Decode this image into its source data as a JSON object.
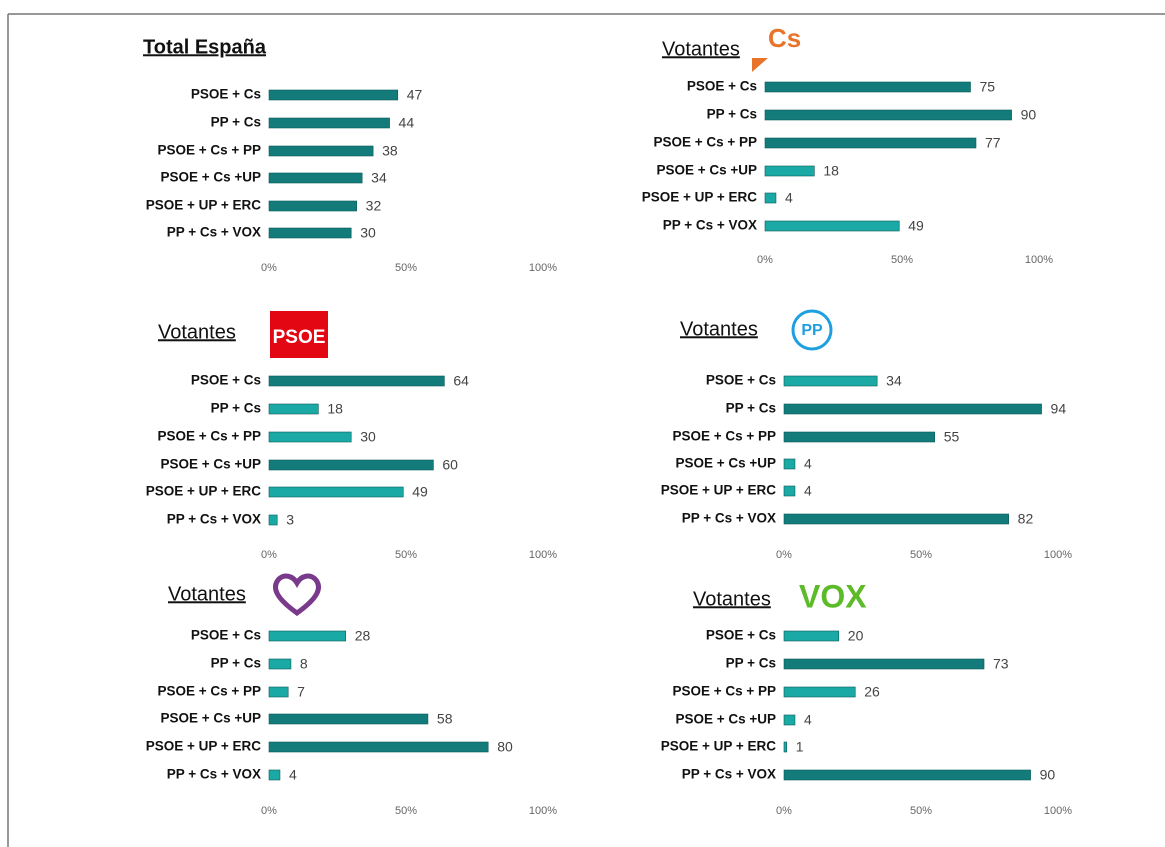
{
  "chart_data": [
    {
      "type": "bar",
      "title": "Total España",
      "categories": [
        "PSOE + Cs",
        "PP + Cs",
        "PSOE + Cs + PP",
        "PSOE + Cs +UP",
        "PSOE + UP + ERC",
        "PP + Cs + VOX"
      ],
      "values": [
        47,
        44,
        38,
        34,
        32,
        30
      ],
      "colors": [
        "#137c7a",
        "#137c7a",
        "#137c7a",
        "#137c7a",
        "#137c7a",
        "#137c7a"
      ],
      "xlim": [
        0,
        100
      ],
      "xticks": [
        {
          "value": 0,
          "label": "0%"
        },
        {
          "value": 50,
          "label": "50%"
        },
        {
          "value": 100,
          "label": "100%"
        }
      ]
    },
    {
      "type": "bar",
      "title": "Votantes",
      "logo": "Cs",
      "categories": [
        "PSOE + Cs",
        "PP + Cs",
        "PSOE + Cs + PP",
        "PSOE + Cs +UP",
        "PSOE + UP + ERC",
        "PP + Cs + VOX"
      ],
      "values": [
        75,
        90,
        77,
        18,
        4,
        49
      ],
      "colors": [
        "#137c7a",
        "#137c7a",
        "#137c7a",
        "#1aa9a5",
        "#1aa9a5",
        "#1aa9a5"
      ],
      "xlim": [
        0,
        100
      ],
      "xticks": [
        {
          "value": 0,
          "label": "0%"
        },
        {
          "value": 50,
          "label": "50%"
        },
        {
          "value": 100,
          "label": "100%"
        }
      ]
    },
    {
      "type": "bar",
      "title": "Votantes",
      "logo": "PSOE",
      "categories": [
        "PSOE + Cs",
        "PP + Cs",
        "PSOE + Cs + PP",
        "PSOE + Cs +UP",
        "PSOE + UP + ERC",
        "PP + Cs + VOX"
      ],
      "values": [
        64,
        18,
        30,
        60,
        49,
        3
      ],
      "colors": [
        "#137c7a",
        "#1aa9a5",
        "#1aa9a5",
        "#137c7a",
        "#1aa9a5",
        "#1aa9a5"
      ],
      "xlim": [
        0,
        100
      ],
      "xticks": [
        {
          "value": 0,
          "label": "0%"
        },
        {
          "value": 50,
          "label": "50%"
        },
        {
          "value": 100,
          "label": "100%"
        }
      ]
    },
    {
      "type": "bar",
      "title": "Votantes",
      "logo": "PP",
      "categories": [
        "PSOE + Cs",
        "PP + Cs",
        "PSOE + Cs + PP",
        "PSOE + Cs +UP",
        "PSOE + UP + ERC",
        "PP + Cs + VOX"
      ],
      "values": [
        34,
        94,
        55,
        4,
        4,
        82
      ],
      "colors": [
        "#1aa9a5",
        "#137c7a",
        "#137c7a",
        "#1aa9a5",
        "#1aa9a5",
        "#137c7a"
      ],
      "xlim": [
        0,
        100
      ],
      "xticks": [
        {
          "value": 0,
          "label": "0%"
        },
        {
          "value": 50,
          "label": "50%"
        },
        {
          "value": 100,
          "label": "100%"
        }
      ]
    },
    {
      "type": "bar",
      "title": "Votantes",
      "categories": [
        "PSOE + Cs",
        "PP + Cs",
        "PSOE + Cs + PP",
        "PSOE + Cs +UP",
        "PSOE + UP + ERC",
        "PP + Cs + VOX"
      ],
      "values": [
        28,
        8,
        7,
        58,
        80,
        4
      ],
      "colors": [
        "#1aa9a5",
        "#1aa9a5",
        "#1aa9a5",
        "#137c7a",
        "#137c7a",
        "#1aa9a5"
      ],
      "xlim": [
        0,
        100
      ],
      "xticks": [
        {
          "value": 0,
          "label": "0%"
        },
        {
          "value": 50,
          "label": "50%"
        },
        {
          "value": 100,
          "label": "100%"
        }
      ]
    },
    {
      "type": "bar",
      "title": "Votantes",
      "logo": "VOX",
      "categories": [
        "PSOE + Cs",
        "PP + Cs",
        "PSOE + Cs + PP",
        "PSOE + Cs +UP",
        "PSOE + UP + ERC",
        "PP + Cs + VOX"
      ],
      "values": [
        20,
        73,
        26,
        4,
        1,
        90
      ],
      "colors": [
        "#1aa9a5",
        "#137c7a",
        "#1aa9a5",
        "#1aa9a5",
        "#1aa9a5",
        "#137c7a"
      ],
      "xlim": [
        0,
        100
      ],
      "xticks": [
        {
          "value": 0,
          "label": "0%"
        },
        {
          "value": 50,
          "label": "50%"
        },
        {
          "value": 100,
          "label": "100%"
        }
      ]
    }
  ]
}
